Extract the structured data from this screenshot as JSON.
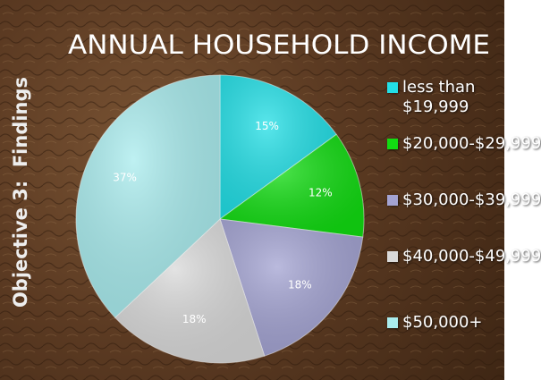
{
  "chart_data": {
    "type": "pie",
    "title": "ANNUAL HOUSEHOLD INCOME",
    "side_label": "Objective 3:  Findings",
    "categories": [
      "less than $19,999",
      "$20,000-$29,999",
      "$30,000-$39,999",
      "$40,000-$49,999",
      "$50,000+"
    ],
    "values": [
      15,
      12,
      18,
      18,
      37
    ],
    "value_labels": [
      "15%",
      "12%",
      "18%",
      "18%",
      "37%"
    ],
    "colors": [
      "#22dfe6",
      "#12dc12",
      "#a3a3d2",
      "#d9d9d9",
      "#a9ecee"
    ],
    "legend": "right"
  }
}
